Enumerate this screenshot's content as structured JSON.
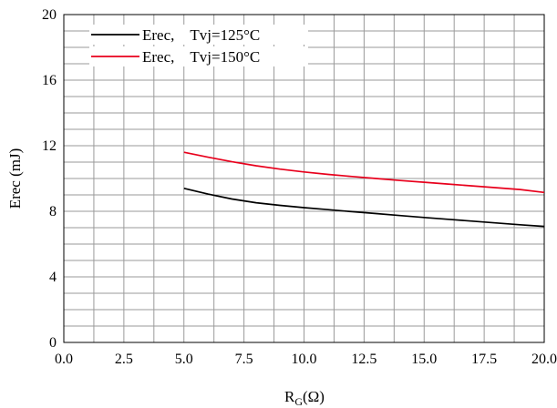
{
  "chart_data": {
    "type": "line",
    "xlabel_main": "R",
    "xlabel_sub": "G",
    "xlabel_tail": "(Ω)",
    "ylabel": "Erec (mJ)",
    "xlim": [
      0,
      20
    ],
    "ylim": [
      0,
      20
    ],
    "xticks": [
      0,
      2.5,
      5,
      7.5,
      10,
      12.5,
      15,
      17.5,
      20
    ],
    "xtick_labels": [
      "0.0",
      "2.5",
      "5.0",
      "7.5",
      "10.0",
      "12.5",
      "15.0",
      "17.5",
      "20.0"
    ],
    "yticks": [
      0,
      4,
      8,
      12,
      16,
      20
    ],
    "ytick_labels": [
      "0",
      "4",
      "8",
      "12",
      "16",
      "20"
    ],
    "grid": true,
    "legend_position": "top-left",
    "series": [
      {
        "name": "Erec,　Tvj=125°C",
        "color": "#000000",
        "x": [
          5,
          6,
          7,
          8,
          9,
          10,
          11,
          12,
          13,
          14,
          15,
          16,
          17,
          18,
          19,
          20
        ],
        "y": [
          9.4,
          9.05,
          8.75,
          8.52,
          8.36,
          8.22,
          8.1,
          7.98,
          7.86,
          7.74,
          7.62,
          7.51,
          7.4,
          7.29,
          7.18,
          7.08
        ]
      },
      {
        "name": "Erec,　Tvj=150°C",
        "color": "#e8001c",
        "x": [
          5,
          6,
          7,
          8,
          9,
          10,
          11,
          12,
          13,
          14,
          15,
          16,
          17,
          18,
          19,
          20
        ],
        "y": [
          11.6,
          11.3,
          11.02,
          10.78,
          10.57,
          10.4,
          10.25,
          10.12,
          10.0,
          9.88,
          9.77,
          9.66,
          9.55,
          9.44,
          9.33,
          9.15
        ]
      }
    ]
  }
}
